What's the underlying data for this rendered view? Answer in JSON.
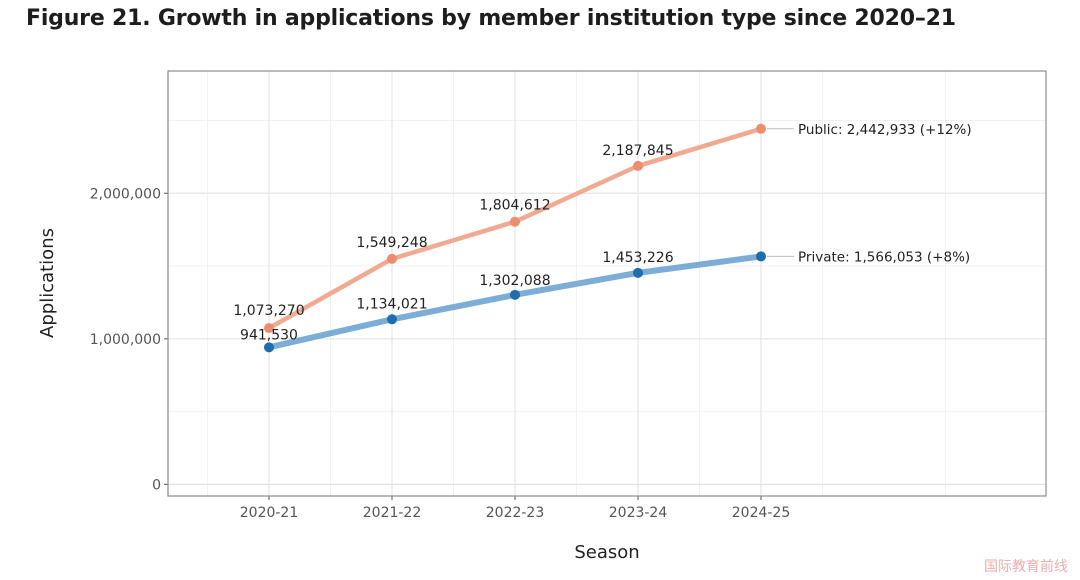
{
  "figure": {
    "title": "Figure 21. Growth in applications by member institution type since 2020–21"
  },
  "chart_data": {
    "type": "line",
    "title": "",
    "xlabel": "Season",
    "ylabel": "Applications",
    "categories": [
      "2020-21",
      "2021-22",
      "2022-23",
      "2023-24",
      "2024-25"
    ],
    "y_ticks": [
      {
        "value": 0,
        "label": "0"
      },
      {
        "value": 1000000,
        "label": "1,000,000"
      },
      {
        "value": 2000000,
        "label": "2,000,000"
      }
    ],
    "ylim": [
      -80000,
      2840000
    ],
    "grid": true,
    "series": [
      {
        "key": "public",
        "color": "#f0a186",
        "point_color": "#ec8d6f",
        "values": [
          1073270,
          1549248,
          1804612,
          2187845,
          2442933
        ],
        "value_labels": [
          "1,073,270",
          "1,549,248",
          "1,804,612",
          "2,187,845",
          ""
        ],
        "end_label": "Public: 2,442,933 (+12%)"
      },
      {
        "key": "private",
        "color": "#6ea4d2",
        "point_color": "#1f6cae",
        "values": [
          941530,
          1134021,
          1302088,
          1453226,
          1566053
        ],
        "value_labels": [
          "941,530",
          "1,134,021",
          "1,302,088",
          "1,453,226",
          ""
        ],
        "end_label": "Private: 1,566,053 (+8%)"
      }
    ]
  },
  "watermark": "国际教育前线"
}
